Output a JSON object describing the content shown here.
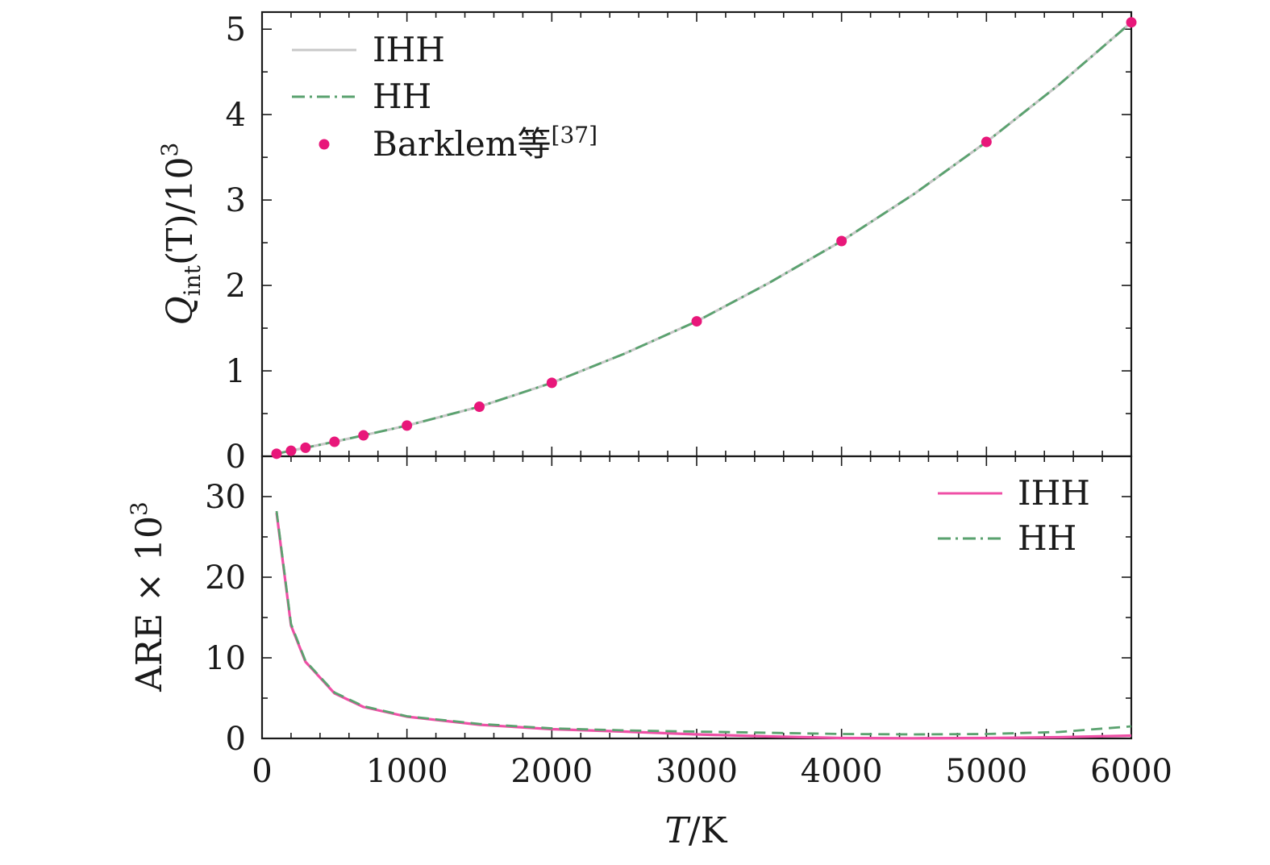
{
  "chart_data": [
    {
      "type": "line",
      "panel": "top",
      "ylabel": "Q_int(T)/10^3",
      "ylabel_parts": {
        "q": "Q",
        "sub": "int",
        "mid": "(T)/10",
        "sup": "3"
      },
      "xlim": [
        0,
        6000
      ],
      "ylim": [
        0,
        5.2
      ],
      "yticks": [
        0,
        1,
        2,
        3,
        4,
        5
      ],
      "ytick_labels": [
        "0",
        "1",
        "2",
        "3",
        "4",
        "5"
      ],
      "legend_position": "top-left",
      "series": [
        {
          "name": "IHH",
          "style": "solid",
          "color": "#c8c8c8",
          "x": [
            100,
            200,
            300,
            500,
            700,
            1000,
            1500,
            2000,
            2500,
            3000,
            3500,
            4000,
            4500,
            5000,
            5500,
            6000
          ],
          "y": [
            0.03,
            0.065,
            0.1,
            0.17,
            0.245,
            0.36,
            0.58,
            0.86,
            1.2,
            1.58,
            2.03,
            2.52,
            3.07,
            3.68,
            4.35,
            5.08
          ]
        },
        {
          "name": "HH",
          "style": "dash-dot",
          "color": "#5aa26f",
          "x": [
            100,
            200,
            300,
            500,
            700,
            1000,
            1500,
            2000,
            2500,
            3000,
            3500,
            4000,
            4500,
            5000,
            5500,
            6000
          ],
          "y": [
            0.03,
            0.065,
            0.1,
            0.17,
            0.245,
            0.36,
            0.58,
            0.86,
            1.2,
            1.58,
            2.03,
            2.52,
            3.07,
            3.68,
            4.35,
            5.08
          ]
        },
        {
          "name": "Barklem等",
          "name_sup": "[37]",
          "style": "markers",
          "color": "#e8177a",
          "x": [
            100,
            200,
            300,
            500,
            700,
            1000,
            1500,
            2000,
            3000,
            4000,
            5000,
            6000
          ],
          "y": [
            0.03,
            0.065,
            0.1,
            0.17,
            0.245,
            0.36,
            0.58,
            0.86,
            1.58,
            2.52,
            3.68,
            5.08
          ]
        }
      ]
    },
    {
      "type": "line",
      "panel": "bottom",
      "ylabel": "ARE × 10^3",
      "ylabel_parts": {
        "main": "ARE × 10",
        "sup": "3"
      },
      "xlabel": "T/K",
      "xlabel_parts": {
        "t": "T",
        "rest": "/K"
      },
      "xlim": [
        0,
        6000
      ],
      "ylim": [
        0,
        35
      ],
      "xticks": [
        0,
        1000,
        2000,
        3000,
        4000,
        5000,
        6000
      ],
      "xtick_labels": [
        "0",
        "1000",
        "2000",
        "3000",
        "4000",
        "5000",
        "6000"
      ],
      "yticks": [
        0,
        10,
        20,
        30
      ],
      "ytick_labels": [
        "0",
        "10",
        "20",
        "30"
      ],
      "legend_position": "top-right",
      "series": [
        {
          "name": "IHH",
          "style": "solid",
          "color": "#ef4fa6",
          "x": [
            100,
            200,
            300,
            500,
            700,
            1000,
            1500,
            2000,
            2500,
            3000,
            3500,
            4000,
            4500,
            5000,
            5500,
            6000
          ],
          "y": [
            28,
            14,
            9.5,
            5.6,
            3.9,
            2.7,
            1.7,
            1.15,
            0.85,
            0.5,
            0.25,
            0.05,
            0.02,
            0.05,
            0.15,
            0.35
          ]
        },
        {
          "name": "HH",
          "style": "dashed",
          "color": "#5aa26f",
          "x": [
            100,
            200,
            300,
            500,
            700,
            1000,
            1500,
            2000,
            2500,
            3000,
            3500,
            4000,
            4500,
            5000,
            5500,
            6000
          ],
          "y": [
            28.2,
            14.2,
            9.6,
            5.7,
            4.0,
            2.75,
            1.8,
            1.25,
            1.0,
            0.85,
            0.7,
            0.55,
            0.5,
            0.55,
            0.8,
            1.5
          ]
        }
      ]
    }
  ]
}
